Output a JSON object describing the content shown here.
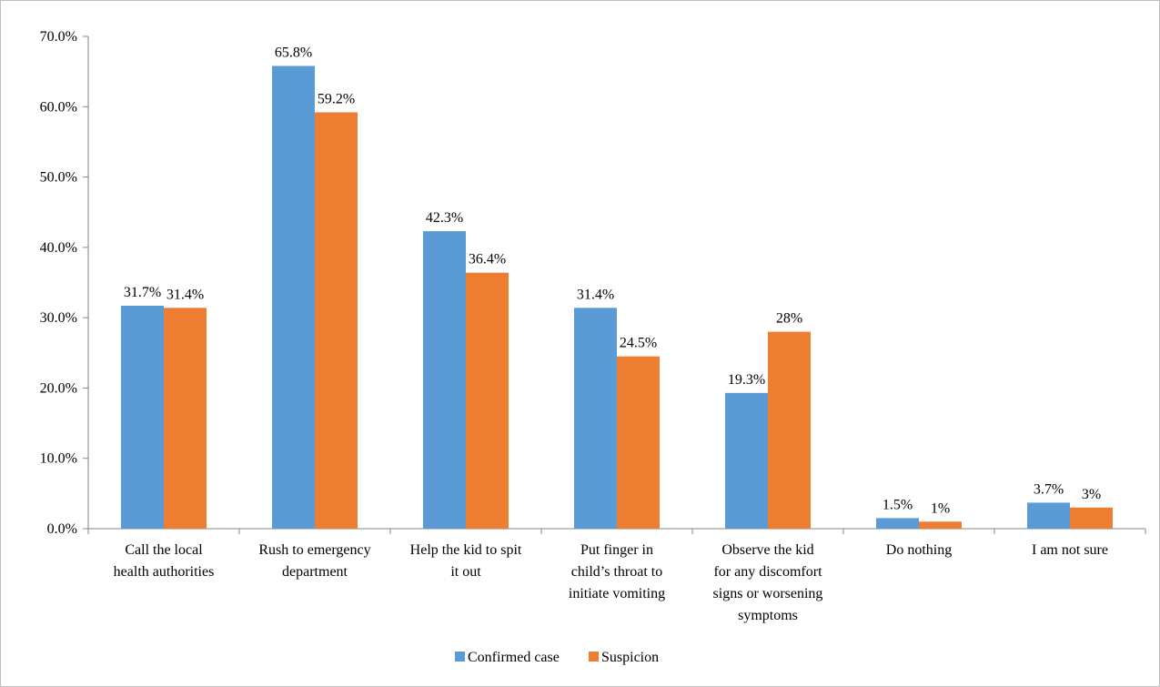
{
  "chart_data": {
    "type": "bar",
    "title": "",
    "xlabel": "",
    "ylabel": "",
    "ylim": [
      0,
      70
    ],
    "y_ticks": [
      "0.0%",
      "10.0%",
      "20.0%",
      "30.0%",
      "40.0%",
      "50.0%",
      "60.0%",
      "70.0%"
    ],
    "grid": false,
    "legend_position": "bottom",
    "categories": [
      [
        "Call the local",
        "health authorities"
      ],
      [
        "Rush to emergency",
        "department"
      ],
      [
        "Help the kid to spit",
        "it out"
      ],
      [
        "Put finger in",
        "child’s throat to",
        "initiate vomiting"
      ],
      [
        "Observe the kid",
        "for any discomfort",
        "signs or worsening",
        "symptoms"
      ],
      [
        "Do nothing"
      ],
      [
        "I am not sure"
      ]
    ],
    "series": [
      {
        "name": "Confirmed case",
        "color": "#5b9bd5",
        "values": [
          31.7,
          65.8,
          42.3,
          31.4,
          19.3,
          1.5,
          3.7
        ],
        "labels": [
          "31.7%",
          "65.8%",
          "42.3%",
          "31.4%",
          "19.3%",
          "1.5%",
          "3.7%"
        ]
      },
      {
        "name": "Suspicion",
        "color": "#ed7d31",
        "values": [
          31.4,
          59.2,
          36.4,
          24.5,
          28,
          1,
          3
        ],
        "labels": [
          "31.4%",
          "59.2%",
          "36.4%",
          "24.5%",
          "28%",
          "1%",
          "3%"
        ]
      }
    ]
  }
}
